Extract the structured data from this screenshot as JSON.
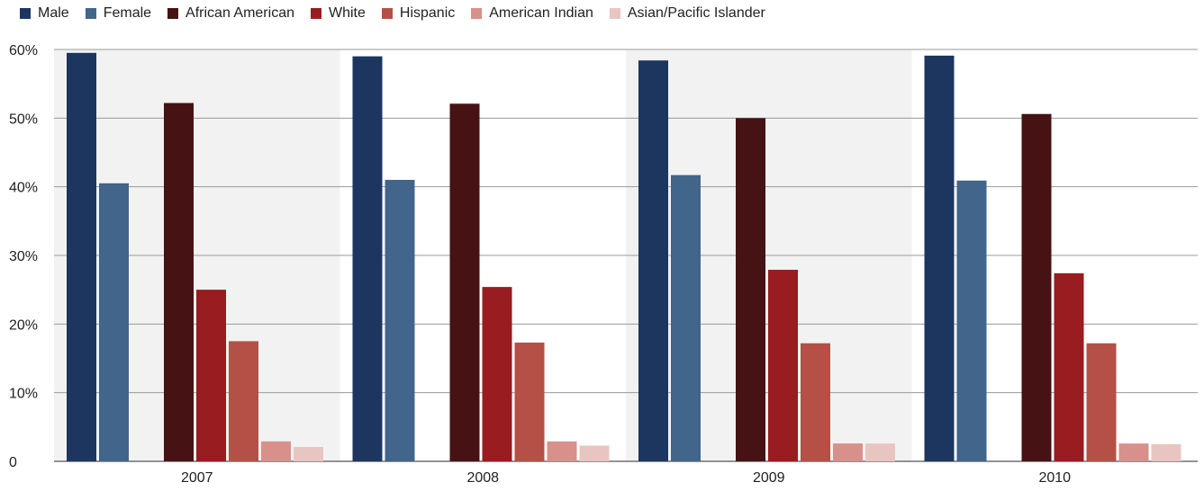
{
  "chart_data": {
    "type": "bar",
    "categories": [
      "2007",
      "2008",
      "2009",
      "2010"
    ],
    "series": [
      {
        "name": "Male",
        "color": "#1c365f",
        "values": [
          59.5,
          59.0,
          58.4,
          59.1
        ]
      },
      {
        "name": "Female",
        "color": "#41658b",
        "values": [
          40.5,
          41.0,
          41.7,
          40.9
        ]
      },
      {
        "name": "African American",
        "color": "#461213",
        "values": [
          52.2,
          52.1,
          50.0,
          50.6
        ]
      },
      {
        "name": "White",
        "color": "#981c20",
        "values": [
          25.0,
          25.4,
          27.9,
          27.4
        ]
      },
      {
        "name": "Hispanic",
        "color": "#b55047",
        "values": [
          17.5,
          17.3,
          17.2,
          17.2
        ]
      },
      {
        "name": "American Indian",
        "color": "#d7908a",
        "values": [
          2.9,
          2.9,
          2.6,
          2.6
        ]
      },
      {
        "name": "Asian/Pacific Islander",
        "color": "#e9c5c1",
        "values": [
          2.1,
          2.3,
          2.6,
          2.5
        ]
      }
    ],
    "y_ticks": [
      "0",
      "10%",
      "20%",
      "30%",
      "40%",
      "50%",
      "60%"
    ],
    "ylim": [
      0,
      60
    ],
    "grid": true,
    "legend_position": "top-left",
    "title": "",
    "xlabel": "",
    "ylabel": ""
  }
}
